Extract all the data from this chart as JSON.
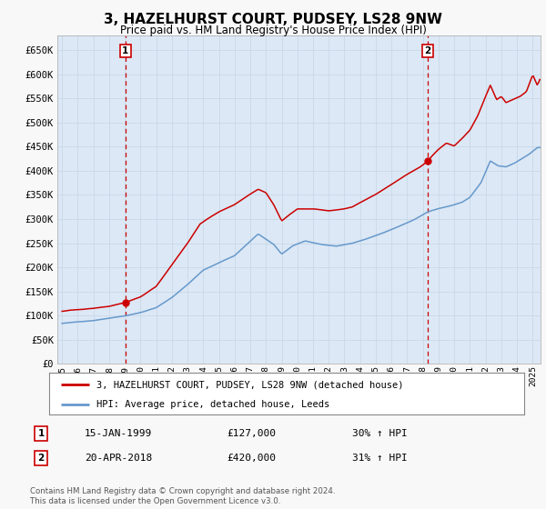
{
  "title": "3, HAZELHURST COURT, PUDSEY, LS28 9NW",
  "subtitle": "Price paid vs. HM Land Registry's House Price Index (HPI)",
  "bg_color": "#f0f0f0",
  "plot_bg_color": "#dce8f5",
  "grid_color": "#b0c4de",
  "red_color": "#cc0000",
  "blue_color": "#6699cc",
  "ylim": [
    0,
    680000
  ],
  "ytick_vals": [
    0,
    50000,
    100000,
    150000,
    200000,
    250000,
    300000,
    350000,
    400000,
    450000,
    500000,
    550000,
    600000,
    650000
  ],
  "xlim_start": 1994.7,
  "xlim_end": 2025.5,
  "purchase1_x": 1999.04,
  "purchase1_y": 127000,
  "purchase2_x": 2018.3,
  "purchase2_y": 420000,
  "legend_label1": "3, HAZELHURST COURT, PUDSEY, LS28 9NW (detached house)",
  "legend_label2": "HPI: Average price, detached house, Leeds",
  "info1_date": "15-JAN-1999",
  "info1_price": "£127,000",
  "info1_hpi": "30% ↑ HPI",
  "info2_date": "20-APR-2018",
  "info2_price": "£420,000",
  "info2_hpi": "31% ↑ HPI",
  "footer": "Contains HM Land Registry data © Crown copyright and database right 2024.\nThis data is licensed under the Open Government Licence v3.0."
}
